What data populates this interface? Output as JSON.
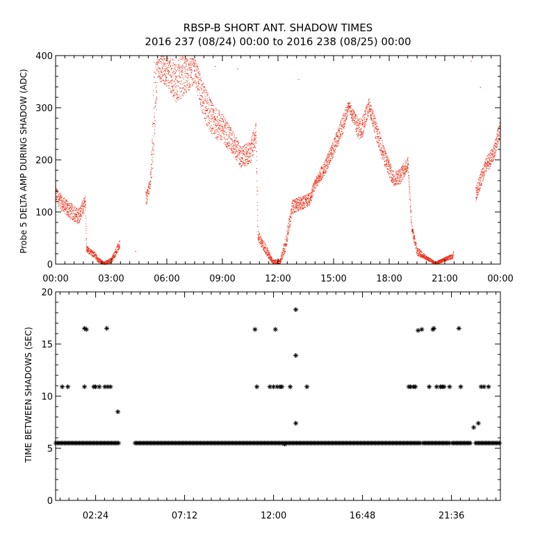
{
  "title": "RBSP-B SHORT ANT. SHADOW TIMES",
  "subtitle": "2016 237 (08/24) 00:00 to 2016 238 (08/25) 00:00",
  "colors": {
    "top_points": "#e8250c",
    "bottom_points": "#000000",
    "axes": "#000000"
  },
  "chart_data": [
    {
      "type": "scatter",
      "ylabel": "Probe 5 DELTA AMP DURING SHADOW (ADC)",
      "xlabel": "",
      "x_unit": "hours",
      "xlim": [
        0,
        24
      ],
      "ylim": [
        0,
        400
      ],
      "x_tick_labels": [
        "00:00",
        "03:00",
        "06:00",
        "09:00",
        "12:00",
        "15:00",
        "18:00",
        "21:00",
        "00:00"
      ],
      "y_tick_labels": [
        "0",
        "100",
        "200",
        "300",
        "400"
      ],
      "series_shape": [
        [
          0.0,
          135,
          15
        ],
        [
          0.3,
          118,
          15
        ],
        [
          0.7,
          105,
          15
        ],
        [
          1.2,
          92,
          15
        ],
        [
          1.6,
          118,
          14
        ],
        [
          1.65,
          30,
          6
        ],
        [
          2.1,
          18,
          6
        ],
        [
          2.3,
          8,
          5
        ],
        [
          2.6,
          2,
          3
        ],
        [
          3.0,
          8,
          5
        ],
        [
          3.4,
          35,
          8
        ],
        [
          4.9,
          130,
          14
        ],
        [
          5.1,
          155,
          10
        ],
        [
          5.3,
          300,
          90
        ],
        [
          5.5,
          380,
          25
        ],
        [
          6.0,
          370,
          30
        ],
        [
          6.5,
          350,
          40
        ],
        [
          6.8,
          360,
          40
        ],
        [
          7.5,
          370,
          25
        ],
        [
          8.0,
          310,
          35
        ],
        [
          8.5,
          275,
          30
        ],
        [
          9.0,
          262,
          28
        ],
        [
          9.5,
          235,
          25
        ],
        [
          10.0,
          205,
          20
        ],
        [
          10.5,
          215,
          22
        ],
        [
          10.8,
          250,
          25
        ],
        [
          10.9,
          55,
          10
        ],
        [
          11.3,
          30,
          10
        ],
        [
          11.7,
          5,
          4
        ],
        [
          12.1,
          5,
          4
        ],
        [
          12.4,
          40,
          14
        ],
        [
          12.75,
          110,
          14
        ],
        [
          13.7,
          125,
          12
        ],
        [
          14.0,
          155,
          10
        ],
        [
          14.5,
          185,
          14
        ],
        [
          15.0,
          225,
          16
        ],
        [
          15.5,
          270,
          18
        ],
        [
          15.8,
          305,
          10
        ],
        [
          16.3,
          260,
          20
        ],
        [
          16.5,
          260,
          20
        ],
        [
          16.9,
          305,
          14
        ],
        [
          17.3,
          255,
          20
        ],
        [
          17.7,
          210,
          18
        ],
        [
          18.2,
          165,
          15
        ],
        [
          18.6,
          170,
          15
        ],
        [
          19.0,
          195,
          14
        ],
        [
          19.2,
          70,
          10
        ],
        [
          19.5,
          25,
          8
        ],
        [
          20.0,
          12,
          4
        ],
        [
          20.5,
          2,
          3
        ],
        [
          21.0,
          10,
          4
        ],
        [
          21.4,
          15,
          5
        ],
        [
          22.7,
          140,
          15
        ],
        [
          23.2,
          190,
          15
        ],
        [
          23.6,
          210,
          15
        ],
        [
          24.0,
          265,
          15
        ]
      ],
      "series_gaps": [
        [
          3.45,
          4.85
        ],
        [
          21.45,
          22.65
        ]
      ],
      "outliers": [
        [
          2.0,
          5
        ],
        [
          4.3,
          25
        ],
        [
          8.6,
          380
        ],
        [
          9.8,
          375
        ],
        [
          13.1,
          355
        ],
        [
          22.4,
          390
        ],
        [
          22.9,
          340
        ]
      ]
    },
    {
      "type": "scatter",
      "ylabel": "TIME BETWEEN SHADOWS (SEC)",
      "xlabel": "",
      "x_unit": "hours",
      "xlim": [
        0.24,
        24.24
      ],
      "ylim": [
        0,
        20
      ],
      "x_tick_values": [
        2.4,
        7.2,
        12.0,
        16.8,
        21.6
      ],
      "x_tick_labels": [
        "02:24",
        "07:12",
        "12:00",
        "16:48",
        "21:36"
      ],
      "y_tick_labels": [
        "0",
        "5",
        "10",
        "15",
        "20"
      ],
      "baseline_value": 5.5,
      "baseline_gaps": [
        [
          3.7,
          4.5
        ],
        [
          19.95,
          20.0
        ],
        [
          21.55,
          21.6
        ],
        [
          22.65,
          22.9
        ]
      ],
      "points": [
        [
          0.6,
          10.9
        ],
        [
          0.9,
          10.9
        ],
        [
          1.8,
          16.5
        ],
        [
          1.9,
          16.4
        ],
        [
          1.8,
          10.9
        ],
        [
          2.3,
          10.9
        ],
        [
          2.4,
          10.9
        ],
        [
          2.6,
          10.9
        ],
        [
          3.0,
          16.5
        ],
        [
          2.9,
          10.9
        ],
        [
          3.05,
          10.9
        ],
        [
          3.2,
          10.9
        ],
        [
          3.6,
          8.5
        ],
        [
          11.0,
          16.4
        ],
        [
          11.1,
          10.9
        ],
        [
          11.8,
          10.9
        ],
        [
          12.0,
          10.9
        ],
        [
          12.1,
          16.4
        ],
        [
          12.2,
          10.9
        ],
        [
          12.35,
          10.9
        ],
        [
          12.45,
          10.9
        ],
        [
          12.6,
          5.4
        ],
        [
          12.9,
          10.9
        ],
        [
          13.2,
          18.3
        ],
        [
          13.2,
          13.9
        ],
        [
          13.2,
          7.4
        ],
        [
          13.8,
          10.9
        ],
        [
          19.3,
          10.9
        ],
        [
          19.4,
          10.9
        ],
        [
          19.55,
          10.9
        ],
        [
          19.65,
          10.9
        ],
        [
          19.8,
          16.3
        ],
        [
          20.0,
          16.4
        ],
        [
          20.4,
          10.9
        ],
        [
          20.6,
          16.4
        ],
        [
          20.65,
          16.5
        ],
        [
          20.8,
          10.9
        ],
        [
          21.0,
          10.9
        ],
        [
          21.1,
          10.9
        ],
        [
          21.2,
          10.9
        ],
        [
          21.5,
          10.9
        ],
        [
          22.0,
          16.5
        ],
        [
          22.1,
          10.9
        ],
        [
          22.8,
          7.0
        ],
        [
          23.05,
          7.4
        ],
        [
          23.2,
          10.9
        ],
        [
          23.35,
          10.9
        ],
        [
          23.6,
          10.9
        ]
      ]
    }
  ]
}
